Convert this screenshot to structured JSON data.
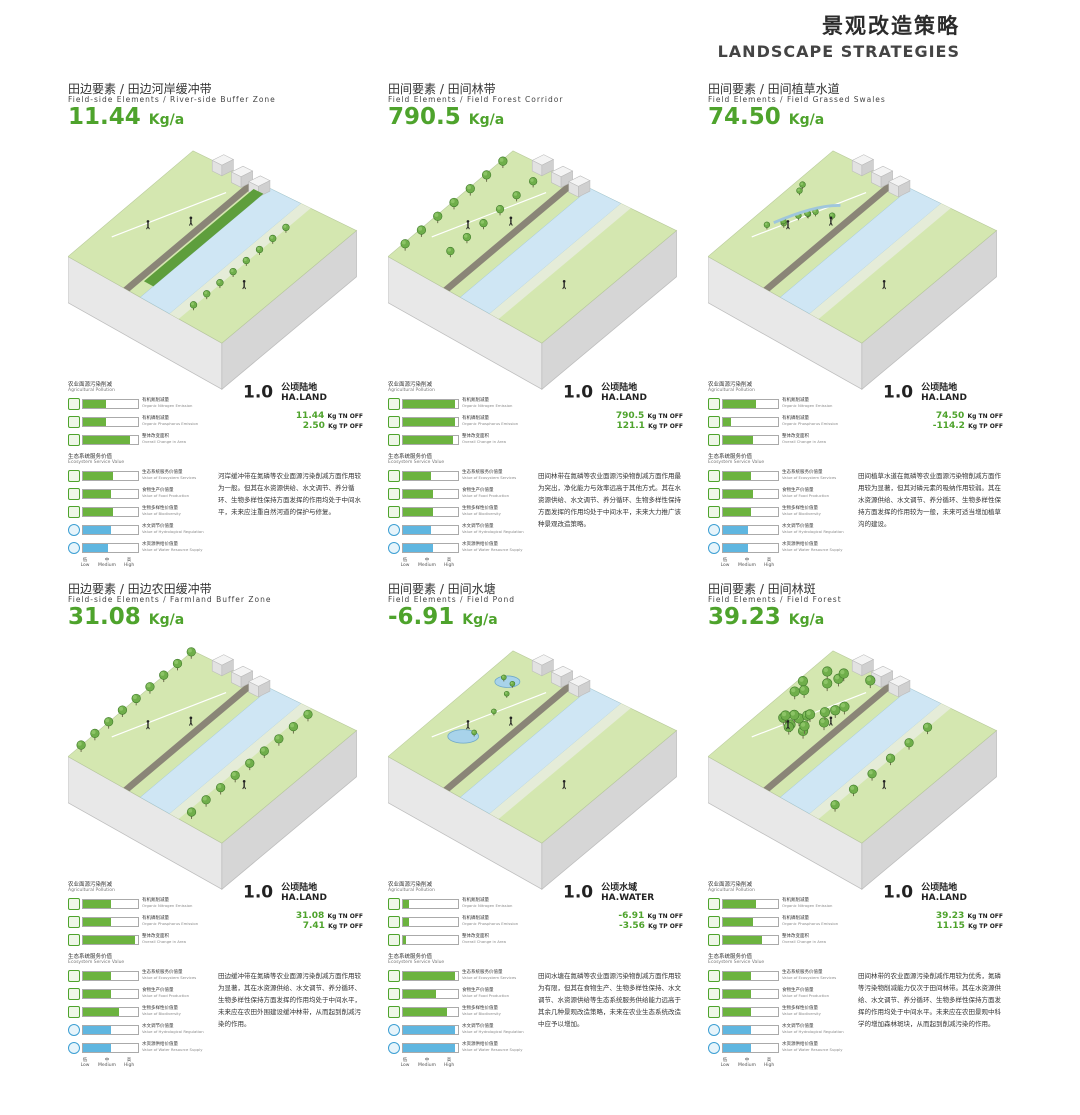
{
  "header": {
    "title_cn": "景观改造策略",
    "title_en": "LANDSCAPE STRATEGIES"
  },
  "legend_text": {
    "pollution_cn": "农业面源污染削减",
    "pollution_en": "Agricultural Pollution",
    "eco_cn": "生态系统服务价值",
    "eco_en": "Ecosystem Service Value",
    "scale": [
      {
        "cn": "低",
        "en": "Low"
      },
      {
        "cn": "中",
        "en": "Medium"
      },
      {
        "cn": "高",
        "en": "High"
      }
    ],
    "pollution_rows": [
      {
        "cn": "有机氮削减量",
        "en": "Organic Nitrogen Emission"
      },
      {
        "cn": "有机磷削减量",
        "en": "Organic Phosphorus Emission"
      },
      {
        "cn": "整体改变面积",
        "en": "Overall Change in Area"
      }
    ],
    "eco_rows": [
      {
        "cn": "生态系统服务价值量",
        "en": "Value of Ecosystem Services"
      },
      {
        "cn": "食物生产价值量",
        "en": "Value of Food Production"
      },
      {
        "cn": "生物多样性价值量",
        "en": "Value of Biodiversity"
      },
      {
        "cn": "水文调节价值量",
        "en": "Value of Hydrological Regulation"
      },
      {
        "cn": "水资源供给价值量",
        "en": "Value of Water Resource Supply"
      }
    ],
    "tn_unit": "Kg TN OFF",
    "tp_unit": "Kg TP OFF"
  },
  "panels": [
    {
      "title": "田边要素 / 田边河岸缓冲带",
      "subtitle": "Field-side Elements / River-side Buffer Zone",
      "value": "11.44",
      "unit": "Kg/a",
      "area_num": "1.0",
      "area_cn": "公顷陆地",
      "area_en": "HA.LAND",
      "tn": "11.44",
      "tp": "2.50",
      "pollution_levels": [
        0.42,
        0.42,
        0.85
      ],
      "eco_levels": [
        0.55,
        0.5,
        0.55,
        0.5,
        0.45
      ],
      "desc": "河岸缓冲带在氮磷等农业面源污染削减方面作用较为一般。但其在水资源供给、水文调节、养分循环、生物多样性保持方面发挥的作用均处于中间水平，未来应注重自然河道的保护与修复。",
      "scene": "river"
    },
    {
      "title": "田间要素 / 田间林带",
      "subtitle": "Field Elements / Field Forest Corridor",
      "value": "790.5",
      "unit": "Kg/a",
      "area_num": "1.0",
      "area_cn": "公顷陆地",
      "area_en": "HA.LAND",
      "tn": "790.5",
      "tp": "121.1",
      "pollution_levels": [
        0.95,
        0.95,
        0.9
      ],
      "eco_levels": [
        0.5,
        0.55,
        0.55,
        0.5,
        0.55
      ],
      "desc": "田间林带在氮磷等农业面源污染物削减方面作用最为突出，净化能力与效率远高于其他方式。其在水资源供给、水文调节、养分循环、生物多样性保持方面发挥的作用均处于中间水平，未来大力推广该种景观改造策略。",
      "scene": "corridor"
    },
    {
      "title": "田间要素 / 田间植草水道",
      "subtitle": "Field Elements / Field Grassed Swales",
      "value": "74.50",
      "unit": "Kg/a",
      "area_num": "1.0",
      "area_cn": "公顷陆地",
      "area_en": "HA.LAND",
      "tn": "74.50",
      "tp": "-114.2",
      "pollution_levels": [
        0.6,
        0.15,
        0.55
      ],
      "eco_levels": [
        0.5,
        0.55,
        0.5,
        0.45,
        0.45
      ],
      "desc": "田间植草水道在氮磷等农业面源污染物削减方面作用较为显著，但其对磷元素的吸纳作用较弱。其在水资源供给、水文调节、养分循环、生物多样性保持方面发挥的作用较为一般，未来可适当增加植草沟的建设。",
      "scene": "swale"
    },
    {
      "title": "田边要素 / 田边农田缓冲带",
      "subtitle": "Field-side Elements / Farmland Buffer Zone",
      "value": "31.08",
      "unit": "Kg/a",
      "area_num": "1.0",
      "area_cn": "公顷陆地",
      "area_en": "HA.LAND",
      "tn": "31.08",
      "tp": "7.41",
      "pollution_levels": [
        0.5,
        0.5,
        0.95
      ],
      "eco_levels": [
        0.5,
        0.5,
        0.65,
        0.5,
        0.5
      ],
      "desc": "田边缓冲带在氮磷等农业面源污染削减方面作用较为显著，其在水资源供给、水文调节、养分循环、生物多样性保持方面发挥的作用均处于中间水平，未来应在农田外围建设缓冲林带，从而起到削减污染的作用。",
      "scene": "buffer"
    },
    {
      "title": "田间要素 / 田间水塘",
      "subtitle": "Field Elements / Field Pond",
      "value": "-6.91",
      "unit": "Kg/a",
      "area_num": "1.0",
      "area_cn": "公顷水域",
      "area_en": "HA.WATER",
      "tn": "-6.91",
      "tp": "-3.56",
      "pollution_levels": [
        0.1,
        0.1,
        0.05
      ],
      "eco_levels": [
        0.95,
        0.6,
        0.8,
        0.95,
        0.95
      ],
      "desc": "田间水塘在氮磷等农业面源污染物削减方面作用较为有限，但其在食物生产、生物多样性保持、水文调节、水资源供给等生态系统服务供给能力远高于其余几种景观改造策略，未来在农业生态系统改造中应予以增加。",
      "scene": "pond"
    },
    {
      "title": "田间要素 / 田间林斑",
      "subtitle": "Field Elements / Field Forest",
      "value": "39.23",
      "unit": "Kg/a",
      "area_num": "1.0",
      "area_cn": "公顷陆地",
      "area_en": "HA.LAND",
      "tn": "39.23",
      "tp": "11.15",
      "pollution_levels": [
        0.6,
        0.55,
        0.7
      ],
      "eco_levels": [
        0.5,
        0.5,
        0.5,
        0.5,
        0.5
      ],
      "desc": "田间林带的农业面源污染削减作用较为优秀，氮磷等污染物削减能力仅次于田间林带。其在水资源供给、水文调节、养分循环、生物多样性保持方面发挥的作用均处于中间水平。未来应在农田景观中科学的增加森林斑块，从而起到削减污染的作用。",
      "scene": "forest"
    }
  ]
}
